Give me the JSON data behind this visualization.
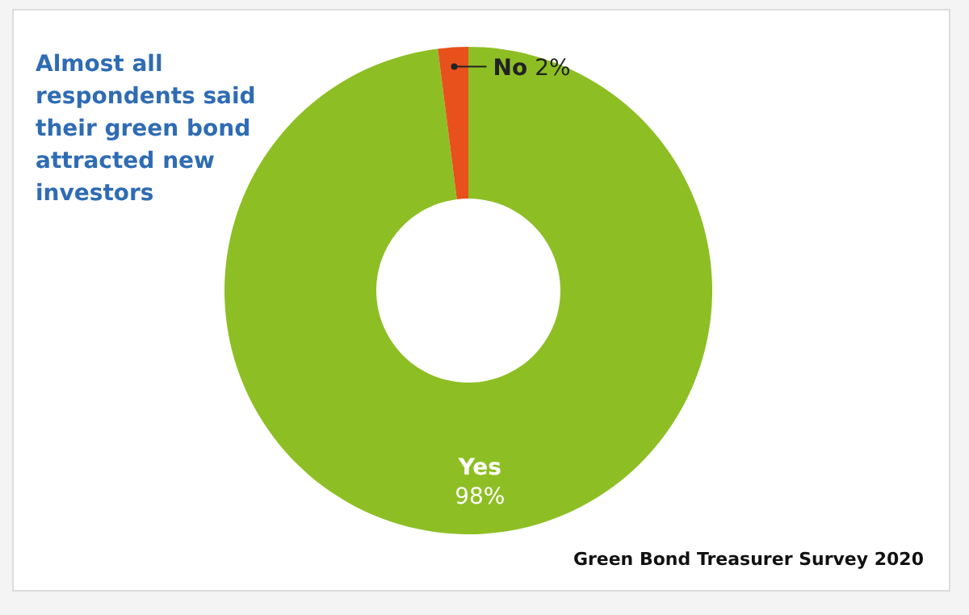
{
  "chart_data": {
    "type": "donut",
    "title": "Almost all respondents said their green bond attracted new investors",
    "categories": [
      "Yes",
      "No"
    ],
    "values": [
      98,
      2
    ],
    "value_labels": [
      "98%",
      "2%"
    ],
    "colors": [
      "#8dbf24",
      "#e8501c"
    ],
    "annotations": [
      "Green Bond Treasurer Survey 2020"
    ]
  }
}
